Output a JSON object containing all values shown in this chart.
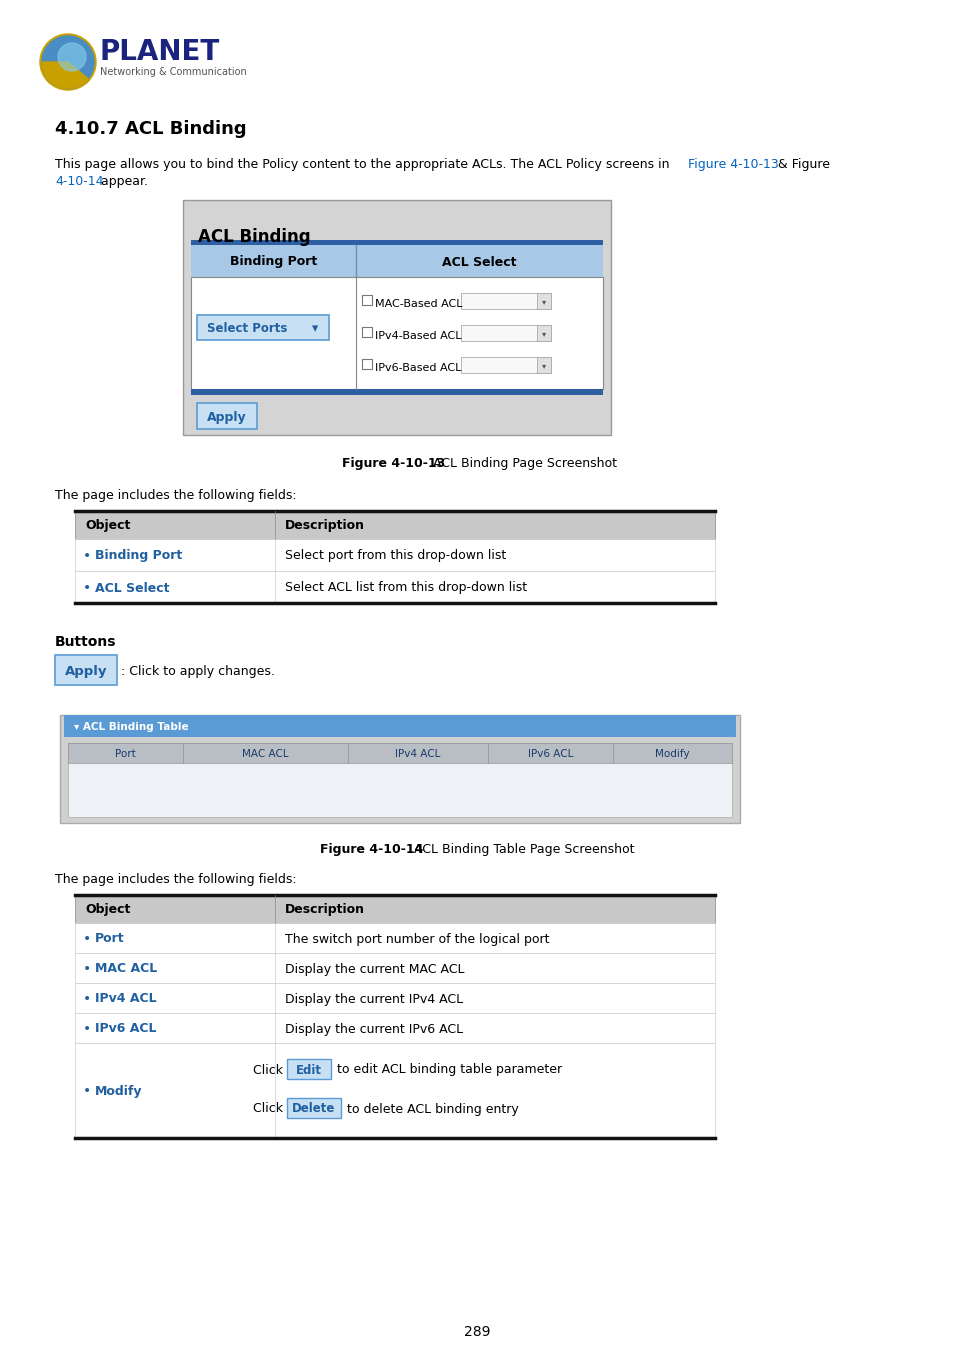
{
  "title": "4.10.7 ACL Binding",
  "page_number": "289",
  "intro_line1": "This page allows you to bind the Policy content to the appropriate ACLs. The ACL Policy screens in ",
  "intro_link1": "Figure 4-10-13",
  "intro_mid": " & ",
  "intro_link2": "Figure 4-10-14",
  "intro_line2_start": "4-10-14",
  "intro_end": " appear.",
  "link_color": "#0563C1",
  "acl_binding_box_title": "ACL Binding",
  "col1_header": "Binding Port",
  "col2_header": "ACL Select",
  "select_ports_label": "Select Ports",
  "acl_options": [
    "MAC-Based ACL",
    "IPv4-Based ACL",
    "IPv6-Based ACL"
  ],
  "apply_button_label": "Apply",
  "fig1_caption_bold": "Figure 4-10-13",
  "fig1_caption_normal": " ACL Binding Page Screenshot",
  "fields_text": "The page includes the following fields:",
  "table1_headers": [
    "Object",
    "Description"
  ],
  "table1_rows": [
    [
      "Binding Port",
      "Select port from this drop-down list"
    ],
    [
      "ACL Select",
      "Select ACL list from this drop-down list"
    ]
  ],
  "buttons_title": "Buttons",
  "apply_click_text": ": Click to apply changes.",
  "acl_binding_table_title": "▾ ACL Binding Table",
  "table2_headers": [
    "Port",
    "MAC ACL",
    "IPv4 ACL",
    "IPv6 ACL",
    "Modify"
  ],
  "fig2_caption_bold": "Figure 4-10-14",
  "fig2_caption_normal": " ACL Binding Table Page Screenshot",
  "fields_text2": "The page includes the following fields:",
  "table3_headers": [
    "Object",
    "Description"
  ],
  "table3_rows": [
    [
      "Port",
      "The switch port number of the logical port"
    ],
    [
      "MAC ACL",
      "Display the current MAC ACL"
    ],
    [
      "IPv4 ACL",
      "Display the current IPv4 ACL"
    ],
    [
      "IPv6 ACL",
      "Display the current IPv6 ACL"
    ],
    [
      "Modify",
      ""
    ]
  ],
  "edit_button_label": "Edit",
  "edit_desc": "to edit ACL binding table parameter",
  "delete_button_label": "Delete",
  "delete_desc": "to delete ACL binding entry",
  "bg_color": "#ffffff",
  "bold_blue": "#2060a0",
  "planet_blue": "#1a237e",
  "box_bg": "#d8d8d8",
  "header_blue_bg": "#5b9bd5",
  "header_blue_dark": "#4472c4",
  "table_hdr_bg": "#c0c0c0",
  "row_border": "#aaaaaa",
  "outer_border": "#111111",
  "apply_btn_bg": "#c8e0f4",
  "apply_btn_border": "#5b9bd5"
}
